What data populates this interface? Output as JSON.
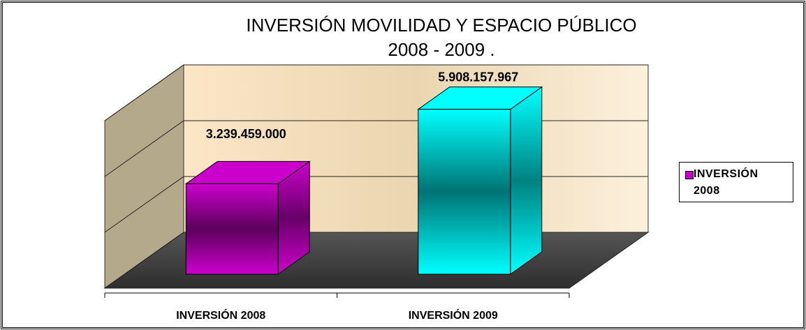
{
  "chart_data": {
    "type": "bar3d",
    "title": "INVERSIÓN MOVILIDAD Y ESPACIO PÚBLICO",
    "subtitle": "2008 -  2009 .",
    "categories": [
      "INVERSIÓN 2008",
      "INVERSIÓN 2009"
    ],
    "series": [
      {
        "name": "INVERSIÓN 2008",
        "color": "#cc00cc",
        "values": [
          3239459000,
          5908157967
        ],
        "value_labels": [
          "3.239.459.000",
          "5.908.157.967"
        ]
      }
    ],
    "colors": [
      "#cc00cc",
      "#00ffff"
    ],
    "ylim": [
      0,
      6000000000
    ],
    "yticks": [
      0,
      2000000000,
      4000000000,
      6000000000
    ],
    "grid": true,
    "legend": "right"
  }
}
